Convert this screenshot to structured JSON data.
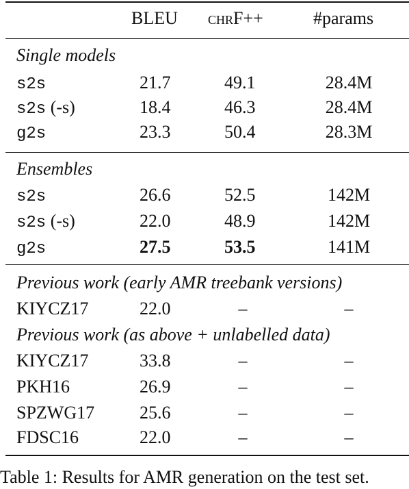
{
  "header": {
    "bleu": "BLEU",
    "chrf_small": "chr",
    "chrf_rest": "F++",
    "params": "#params"
  },
  "sections": {
    "single": "Single models",
    "ensembles": "Ensembles",
    "prev1": "Previous work (early AMR treebank versions)",
    "prev2": "Previous work (as above + unlabelled data)"
  },
  "single_rows": [
    {
      "name": "s2s",
      "suffix": "",
      "bleu": "21.7",
      "chrf": "49.1",
      "params": "28.4M"
    },
    {
      "name": "s2s",
      "suffix": " (-s)",
      "bleu": "18.4",
      "chrf": "46.3",
      "params": "28.4M"
    },
    {
      "name": "g2s",
      "suffix": "",
      "bleu": "23.3",
      "chrf": "50.4",
      "params": "28.3M"
    }
  ],
  "ensemble_rows": [
    {
      "name": "s2s",
      "suffix": "",
      "bleu": "26.6",
      "chrf": "52.5",
      "params": "142M"
    },
    {
      "name": "s2s",
      "suffix": " (-s)",
      "bleu": "22.0",
      "chrf": "48.9",
      "params": "142M"
    },
    {
      "name": "g2s",
      "suffix": "",
      "bleu": "27.5",
      "chrf": "53.5",
      "params": "141M"
    }
  ],
  "prev1_rows": [
    {
      "name": "KIYCZ17",
      "bleu": "22.0",
      "chrf": "–",
      "params": "–"
    }
  ],
  "prev2_rows": [
    {
      "name": "KIYCZ17",
      "bleu": "33.8",
      "chrf": "–",
      "params": "–"
    },
    {
      "name": "PKH16",
      "bleu": "26.9",
      "chrf": "–",
      "params": "–"
    },
    {
      "name": "SPZWG17",
      "bleu": "25.6",
      "chrf": "–",
      "params": "–"
    },
    {
      "name": "FDSC16",
      "bleu": "22.0",
      "chrf": "–",
      "params": "–"
    }
  ],
  "caption": "Table 1: Results for AMR generation on the test set."
}
